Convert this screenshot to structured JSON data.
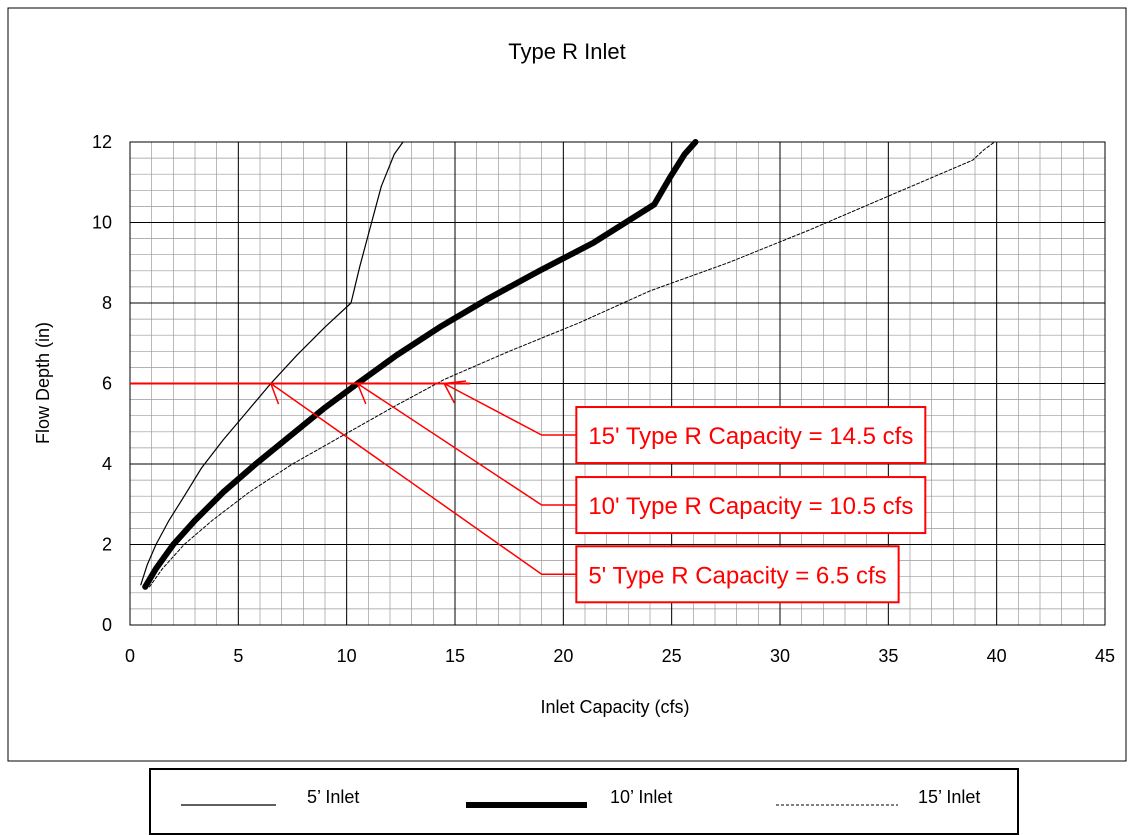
{
  "chart_data": {
    "type": "line",
    "title": "Type R Inlet",
    "xlabel": "Inlet Capacity (cfs)",
    "ylabel": "Flow Depth (in)",
    "xlim": [
      0,
      45
    ],
    "ylim": [
      0,
      12
    ],
    "xticks": [
      0,
      5,
      10,
      15,
      20,
      25,
      30,
      35,
      40,
      45
    ],
    "yticks": [
      0,
      2,
      4,
      6,
      8,
      10,
      12
    ],
    "x_minor_step": 1,
    "y_minor_step": 0.4,
    "grid": true,
    "legend_position": "bottom",
    "series": [
      {
        "name": "5’ Inlet",
        "style": "thin",
        "color": "#000000",
        "x": [
          0.5,
          0.8,
          1.2,
          1.8,
          2.5,
          3.3,
          4.3,
          5.4,
          6.5,
          7.7,
          9.0,
          10.2,
          10.6,
          11.1,
          11.6,
          12.2,
          12.6
        ],
        "y": [
          1.0,
          1.5,
          2.0,
          2.6,
          3.2,
          3.9,
          4.6,
          5.3,
          6.0,
          6.7,
          7.4,
          8.0,
          8.9,
          9.9,
          10.9,
          11.7,
          12.0
        ]
      },
      {
        "name": "10’ Inlet",
        "style": "bold",
        "color": "#000000",
        "x": [
          0.7,
          1.2,
          2.0,
          3.0,
          4.3,
          5.8,
          7.4,
          9.0,
          10.5,
          12.3,
          14.3,
          16.5,
          18.9,
          21.4,
          24.2,
          24.9,
          25.6,
          26.1
        ],
        "y": [
          0.95,
          1.4,
          2.0,
          2.6,
          3.3,
          4.0,
          4.7,
          5.4,
          6.0,
          6.7,
          7.4,
          8.1,
          8.8,
          9.5,
          10.45,
          11.1,
          11.7,
          12.0
        ]
      },
      {
        "name": "15’ Inlet",
        "style": "dashed",
        "color": "#000000",
        "x": [
          0.9,
          1.5,
          2.5,
          3.8,
          5.5,
          7.5,
          9.8,
          12.1,
          14.5,
          17.5,
          20.7,
          24.0,
          27.6,
          31.3,
          35.2,
          38.9,
          39.4,
          39.9
        ],
        "y": [
          0.95,
          1.4,
          2.0,
          2.6,
          3.3,
          4.0,
          4.7,
          5.4,
          6.1,
          6.8,
          7.5,
          8.3,
          9.0,
          9.8,
          10.7,
          11.55,
          11.8,
          12.0
        ]
      }
    ],
    "reference_line": {
      "y": 6,
      "x_from": 0,
      "x_to": 15.7,
      "color": "#ff0000"
    },
    "annotations": [
      {
        "text": "15' Type R Capacity = 14.5 cfs",
        "point_x": 14.5,
        "point_y": 6,
        "elbow_x": 19.0,
        "elbow_y": 4.72,
        "box_x": 20.6,
        "box_y": 4.72
      },
      {
        "text": "10' Type R Capacity = 10.5 cfs",
        "point_x": 10.5,
        "point_y": 6,
        "elbow_x": 19.0,
        "elbow_y": 2.98,
        "box_x": 20.6,
        "box_y": 2.98
      },
      {
        "text": "5' Type R Capacity = 6.5 cfs",
        "point_x": 6.5,
        "point_y": 6,
        "elbow_x": 19.0,
        "elbow_y": 1.26,
        "box_x": 20.6,
        "box_y": 1.26
      }
    ],
    "annotation_color": "#ff0000"
  }
}
